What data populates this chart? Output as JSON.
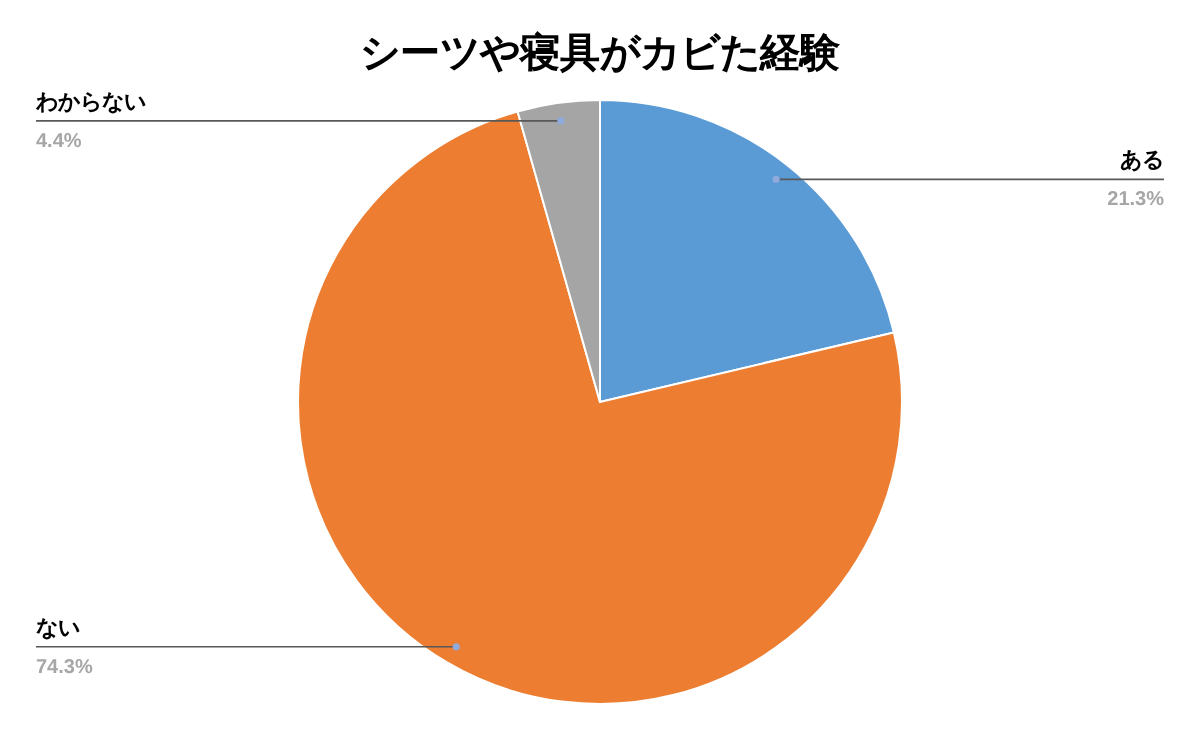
{
  "chart_data": {
    "type": "pie",
    "title": "シーツや寝具がカビた経験",
    "categories": [
      "ある",
      "ない",
      "わからない"
    ],
    "values": [
      21.3,
      74.3,
      4.4
    ],
    "value_labels": [
      "21.3%",
      "74.3%",
      "4.4%"
    ],
    "colors": [
      "#5b9bd5",
      "#ed7d31",
      "#a5a5a5"
    ],
    "legend": false
  }
}
